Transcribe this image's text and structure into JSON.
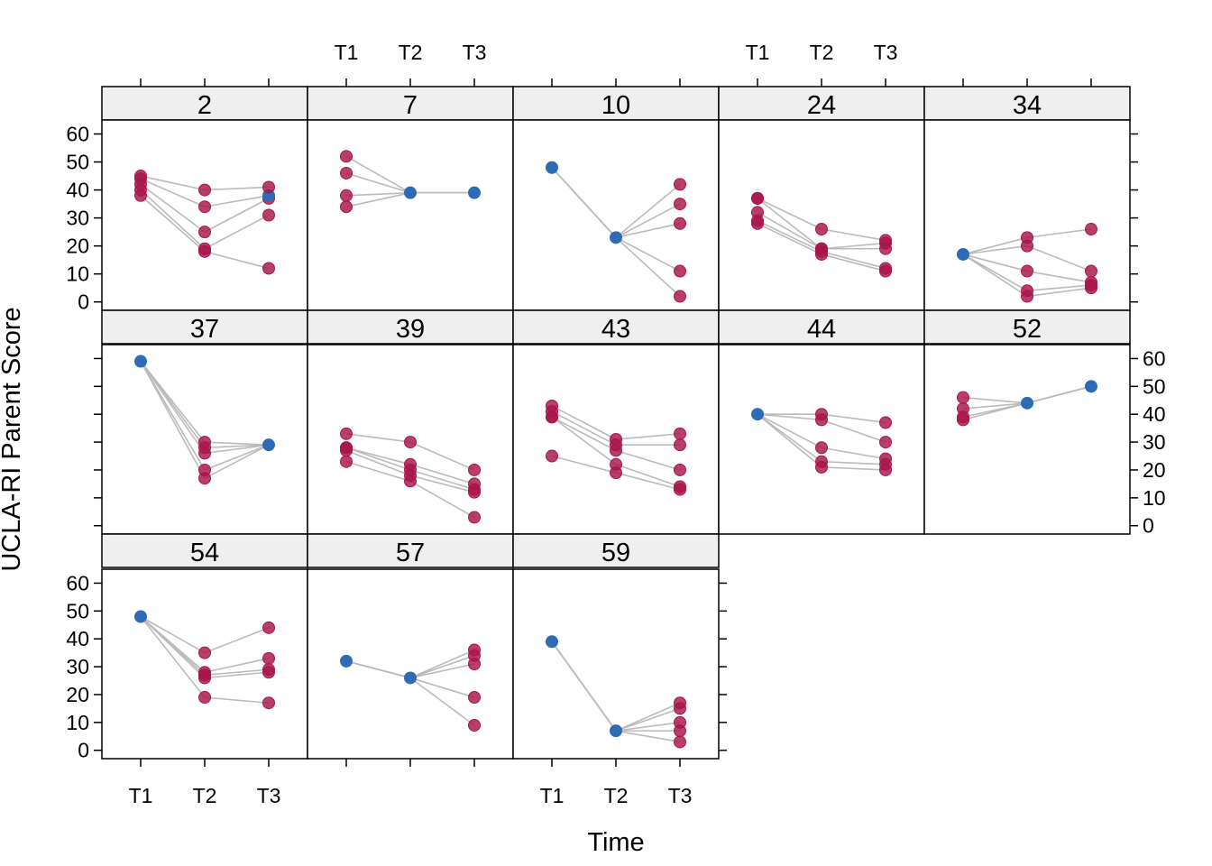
{
  "chart_data": {
    "type": "scatter",
    "xlabel": "Time",
    "ylabel": "UCLA-RI Parent Score",
    "x_categories": [
      "T1",
      "T2",
      "T3"
    ],
    "y_ticks": [
      0,
      10,
      20,
      30,
      40,
      50,
      60
    ],
    "ylim": [
      -3,
      65
    ],
    "colors": {
      "point": "#A8154A",
      "hub": "#2E6BB5",
      "line": "#BBBBBB",
      "strip": "#EFEFEF"
    },
    "panels": [
      {
        "label": "2",
        "hub": [
          2,
          38
        ],
        "line_mode": "chain",
        "groups": [
          {
            "x": 0,
            "ys": [
              38,
              40,
              42,
              44,
              45
            ]
          },
          {
            "x": 1,
            "ys": [
              18,
              19,
              25,
              34,
              40
            ]
          },
          {
            "x": 2,
            "ys": [
              12,
              31,
              37,
              38,
              41
            ]
          }
        ]
      },
      {
        "label": "7",
        "hub": [
          1,
          39
        ],
        "line_mode": "chain",
        "groups": [
          {
            "x": 0,
            "ys": [
              34,
              38,
              46,
              52
            ]
          },
          {
            "x": 2,
            "ys": [
              39
            ]
          }
        ],
        "extra_hubs": [
          [
            2,
            39
          ]
        ]
      },
      {
        "label": "10",
        "hub": [
          1,
          23
        ],
        "line_mode": "chain",
        "groups": [
          {
            "x": 2,
            "ys": [
              2,
              11,
              28,
              35,
              42
            ]
          }
        ],
        "extra_hubs": [
          [
            0,
            48
          ]
        ]
      },
      {
        "label": "24",
        "hub": null,
        "line_mode": "chain",
        "groups": [
          {
            "x": 0,
            "ys": [
              28,
              29,
              32,
              37,
              37
            ]
          },
          {
            "x": 1,
            "ys": [
              17,
              18,
              19,
              19,
              26
            ]
          },
          {
            "x": 2,
            "ys": [
              11,
              12,
              19,
              21,
              22
            ]
          }
        ]
      },
      {
        "label": "34",
        "hub": [
          0,
          17
        ],
        "line_mode": "chain",
        "groups": [
          {
            "x": 1,
            "ys": [
              2,
              4,
              11,
              20,
              23
            ]
          },
          {
            "x": 2,
            "ys": [
              5,
              6,
              7,
              11,
              26
            ]
          }
        ]
      },
      {
        "label": "37",
        "hub": [
          0,
          59
        ],
        "line_mode": "chain",
        "groups": [
          {
            "x": 1,
            "ys": [
              17,
              20,
              26,
              28,
              30
            ]
          }
        ],
        "extra_hubs": [
          [
            2,
            29
          ]
        ]
      },
      {
        "label": "39",
        "hub": null,
        "line_mode": "chain",
        "groups": [
          {
            "x": 0,
            "ys": [
              23,
              27,
              28,
              28,
              33
            ]
          },
          {
            "x": 1,
            "ys": [
              16,
              18,
              20,
              22,
              30
            ]
          },
          {
            "x": 2,
            "ys": [
              3,
              12,
              13,
              15,
              20
            ]
          }
        ]
      },
      {
        "label": "43",
        "hub": null,
        "line_mode": "chain",
        "groups": [
          {
            "x": 0,
            "ys": [
              25,
              39,
              39,
              41,
              43
            ]
          },
          {
            "x": 1,
            "ys": [
              19,
              22,
              27,
              29,
              31
            ]
          },
          {
            "x": 2,
            "ys": [
              13,
              14,
              20,
              29,
              33
            ]
          }
        ]
      },
      {
        "label": "44",
        "hub": [
          0,
          40
        ],
        "line_mode": "chain",
        "groups": [
          {
            "x": 1,
            "ys": [
              21,
              23,
              28,
              38,
              40
            ]
          },
          {
            "x": 2,
            "ys": [
              20,
              22,
              24,
              30,
              37
            ]
          }
        ]
      },
      {
        "label": "52",
        "hub": [
          1,
          44
        ],
        "line_mode": "chain",
        "groups": [
          {
            "x": 0,
            "ys": [
              38,
              39,
              42,
              46
            ]
          }
        ],
        "extra_hubs": [
          [
            2,
            50
          ]
        ]
      },
      {
        "label": "54",
        "hub": [
          0,
          48
        ],
        "line_mode": "chain",
        "groups": [
          {
            "x": 1,
            "ys": [
              19,
              26,
              27,
              28,
              35
            ]
          },
          {
            "x": 2,
            "ys": [
              17,
              28,
              29,
              33,
              44
            ]
          }
        ]
      },
      {
        "label": "57",
        "hub": [
          1,
          26
        ],
        "line_mode": "chain",
        "groups": [
          {
            "x": 2,
            "ys": [
              9,
              19,
              31,
              34,
              36
            ]
          }
        ],
        "extra_hubs": [
          [
            0,
            32
          ]
        ]
      },
      {
        "label": "59",
        "hub": [
          1,
          7
        ],
        "line_mode": "chain",
        "groups": [
          {
            "x": 2,
            "ys": [
              3,
              7,
              10,
              15,
              17
            ]
          }
        ],
        "extra_hubs": [
          [
            0,
            39
          ]
        ]
      }
    ]
  }
}
